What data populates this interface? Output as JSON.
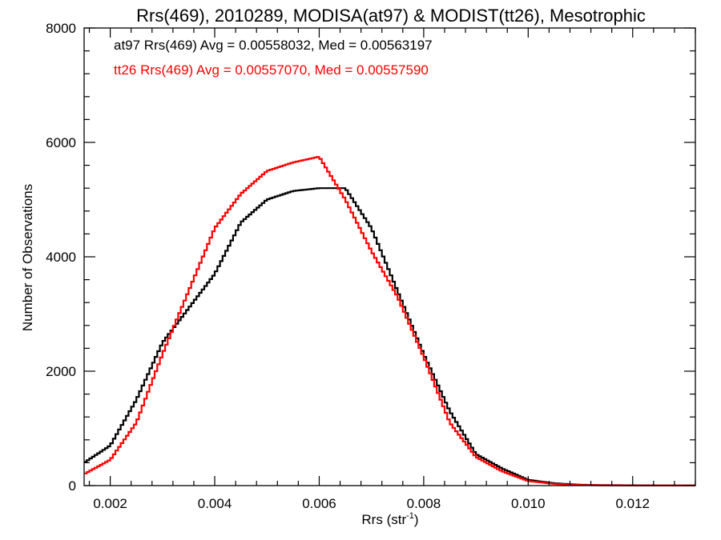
{
  "chart_data": {
    "type": "line",
    "title": "Rrs(469), 2010289, MODISA(at97) & MODIST(tt26), Mesotrophic",
    "xlabel": "Rrs (str",
    "xlabel_sup": "-1",
    "xlabel_end": ")",
    "ylabel": "Number of Observations",
    "xlim": [
      0.0015,
      0.0132
    ],
    "ylim": [
      0,
      8000
    ],
    "x_ticks": [
      "0.002",
      "0.004",
      "0.006",
      "0.008",
      "0.010",
      "0.012"
    ],
    "y_ticks": [
      "0",
      "2000",
      "4000",
      "6000",
      "8000"
    ],
    "legend": [
      {
        "text": "at97 Rrs(469) Avg = 0.00558032, Med = 0.00563197",
        "color": "#000000"
      },
      {
        "text": "tt26 Rrs(469) Avg = 0.00557070, Med = 0.00557590",
        "color": "#ff0000"
      }
    ],
    "x": [
      0.0015,
      0.002,
      0.0025,
      0.003,
      0.0035,
      0.004,
      0.0045,
      0.005,
      0.0055,
      0.006,
      0.0065,
      0.007,
      0.0075,
      0.008,
      0.0085,
      0.009,
      0.0095,
      0.01,
      0.0105,
      0.011,
      0.0115,
      0.012,
      0.0125,
      0.0132
    ],
    "series": [
      {
        "name": "at97",
        "color": "#000000",
        "values": [
          400,
          700,
          1500,
          2500,
          3100,
          3700,
          4600,
          5000,
          5150,
          5200,
          5200,
          4500,
          3400,
          2300,
          1300,
          550,
          300,
          100,
          40,
          15,
          8,
          5,
          3,
          2
        ]
      },
      {
        "name": "tt26",
        "color": "#ff0000",
        "values": [
          200,
          450,
          1100,
          2300,
          3400,
          4500,
          5100,
          5500,
          5650,
          5750,
          5000,
          4100,
          3300,
          2250,
          1100,
          500,
          250,
          80,
          30,
          10,
          5,
          3,
          2,
          1
        ]
      }
    ]
  }
}
